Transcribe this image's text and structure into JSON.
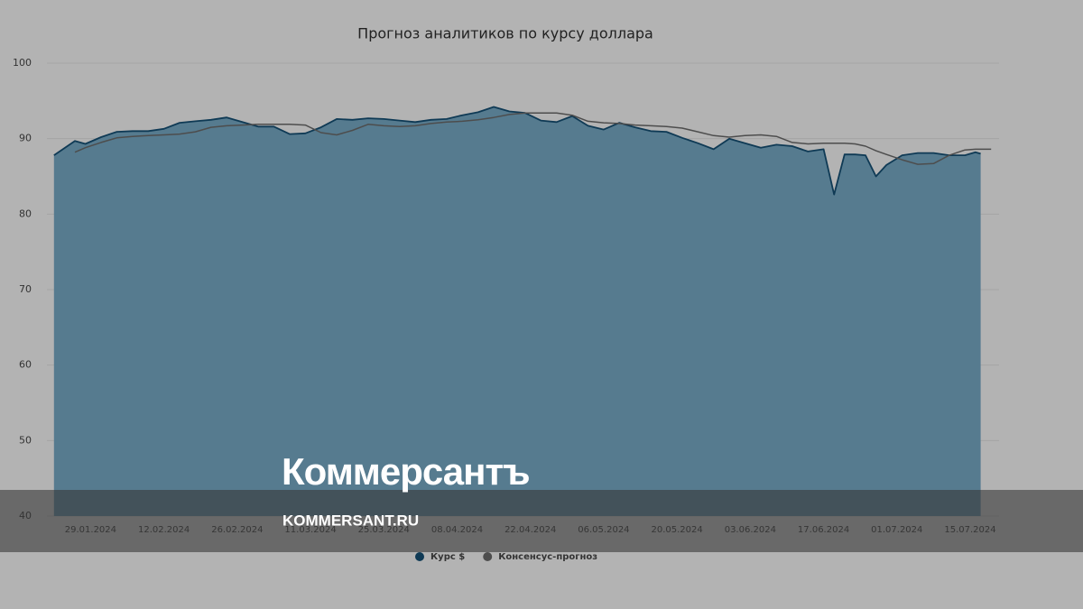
{
  "chart_data": {
    "type": "area",
    "title": "Прогноз аналитиков по курсу доллара",
    "x": [
      "22.01.2024",
      "26.01.2024",
      "28.01.2024",
      "31.01.2024",
      "03.02.2024",
      "06.02.2024",
      "09.02.2024",
      "12.02.2024",
      "15.02.2024",
      "18.02.2024",
      "21.02.2024",
      "24.02.2024",
      "27.02.2024",
      "01.03.2024",
      "04.03.2024",
      "07.03.2024",
      "10.03.2024",
      "13.03.2024",
      "16.03.2024",
      "19.03.2024",
      "22.03.2024",
      "25.03.2024",
      "28.03.2024",
      "31.03.2024",
      "03.04.2024",
      "06.04.2024",
      "09.04.2024",
      "12.04.2024",
      "15.04.2024",
      "18.04.2024",
      "21.04.2024",
      "24.04.2024",
      "27.04.2024",
      "30.04.2024",
      "03.05.2024",
      "06.05.2024",
      "09.05.2024",
      "12.05.2024",
      "15.05.2024",
      "18.05.2024",
      "21.05.2024",
      "24.05.2024",
      "27.05.2024",
      "30.05.2024",
      "02.06.2024",
      "05.06.2024",
      "08.06.2024",
      "11.06.2024",
      "14.06.2024",
      "17.06.2024",
      "19.06.2024",
      "21.06.2024",
      "23.06.2024",
      "25.06.2024",
      "27.06.2024",
      "29.06.2024",
      "02.07.2024",
      "05.07.2024",
      "08.07.2024",
      "11.07.2024",
      "14.07.2024",
      "16.07.2024",
      "17.07.2024",
      "19.07.2024"
    ],
    "series": [
      {
        "name": "Курс $",
        "color": "#0f3a55",
        "fill": "#567b8f",
        "values": [
          87.8,
          89.7,
          89.3,
          90.2,
          90.9,
          91.0,
          91.0,
          91.3,
          92.1,
          92.3,
          92.5,
          92.8,
          92.2,
          91.6,
          91.6,
          90.6,
          90.7,
          91.5,
          92.6,
          92.5,
          92.7,
          92.6,
          92.4,
          92.2,
          92.5,
          92.6,
          93.1,
          93.5,
          94.2,
          93.6,
          93.4,
          92.4,
          92.2,
          93.0,
          91.7,
          91.2,
          92.1,
          91.5,
          91.0,
          90.9,
          90.1,
          89.4,
          88.6,
          90.0,
          89.4,
          88.8,
          89.2,
          89.0,
          88.3,
          88.6,
          82.6,
          87.9,
          87.9,
          87.8,
          85.0,
          86.5,
          87.8,
          88.1,
          88.1,
          87.8,
          87.8,
          88.2,
          88.0,
          null
        ]
      },
      {
        "name": "Консенсус-прогноз",
        "color": "#4d4d4d",
        "values": [
          null,
          88.2,
          88.8,
          89.5,
          90.1,
          90.3,
          90.4,
          90.5,
          90.6,
          90.9,
          91.5,
          91.7,
          91.8,
          91.9,
          91.9,
          91.9,
          91.8,
          90.8,
          90.5,
          91.1,
          91.9,
          91.7,
          91.6,
          91.7,
          92.0,
          92.2,
          92.3,
          92.5,
          92.8,
          93.2,
          93.4,
          93.4,
          93.4,
          93.1,
          92.3,
          92.1,
          92.0,
          91.8,
          91.7,
          91.6,
          91.4,
          90.9,
          90.4,
          90.2,
          90.4,
          90.5,
          90.3,
          89.5,
          89.3,
          89.4,
          89.4,
          89.4,
          89.3,
          89.0,
          88.4,
          87.9,
          87.2,
          86.6,
          86.7,
          87.8,
          88.5,
          88.6,
          88.6,
          88.6
        ]
      }
    ],
    "xlim": [
      "21.01.2024",
      "20.07.2024"
    ],
    "xticks": [
      "29.01.2024",
      "12.02.2024",
      "26.02.2024",
      "11.03.2024",
      "25.03.2024",
      "08.04.2024",
      "22.04.2024",
      "06.05.2024",
      "20.05.2024",
      "03.06.2024",
      "17.06.2024",
      "01.07.2024",
      "15.07.2024"
    ],
    "ylim": [
      40,
      100
    ],
    "yticks": [
      40,
      50,
      60,
      70,
      80,
      90,
      100
    ],
    "grid": true
  },
  "watermark": {
    "logo": "Коммерсантъ",
    "site": "KOMMERSANT.RU"
  }
}
